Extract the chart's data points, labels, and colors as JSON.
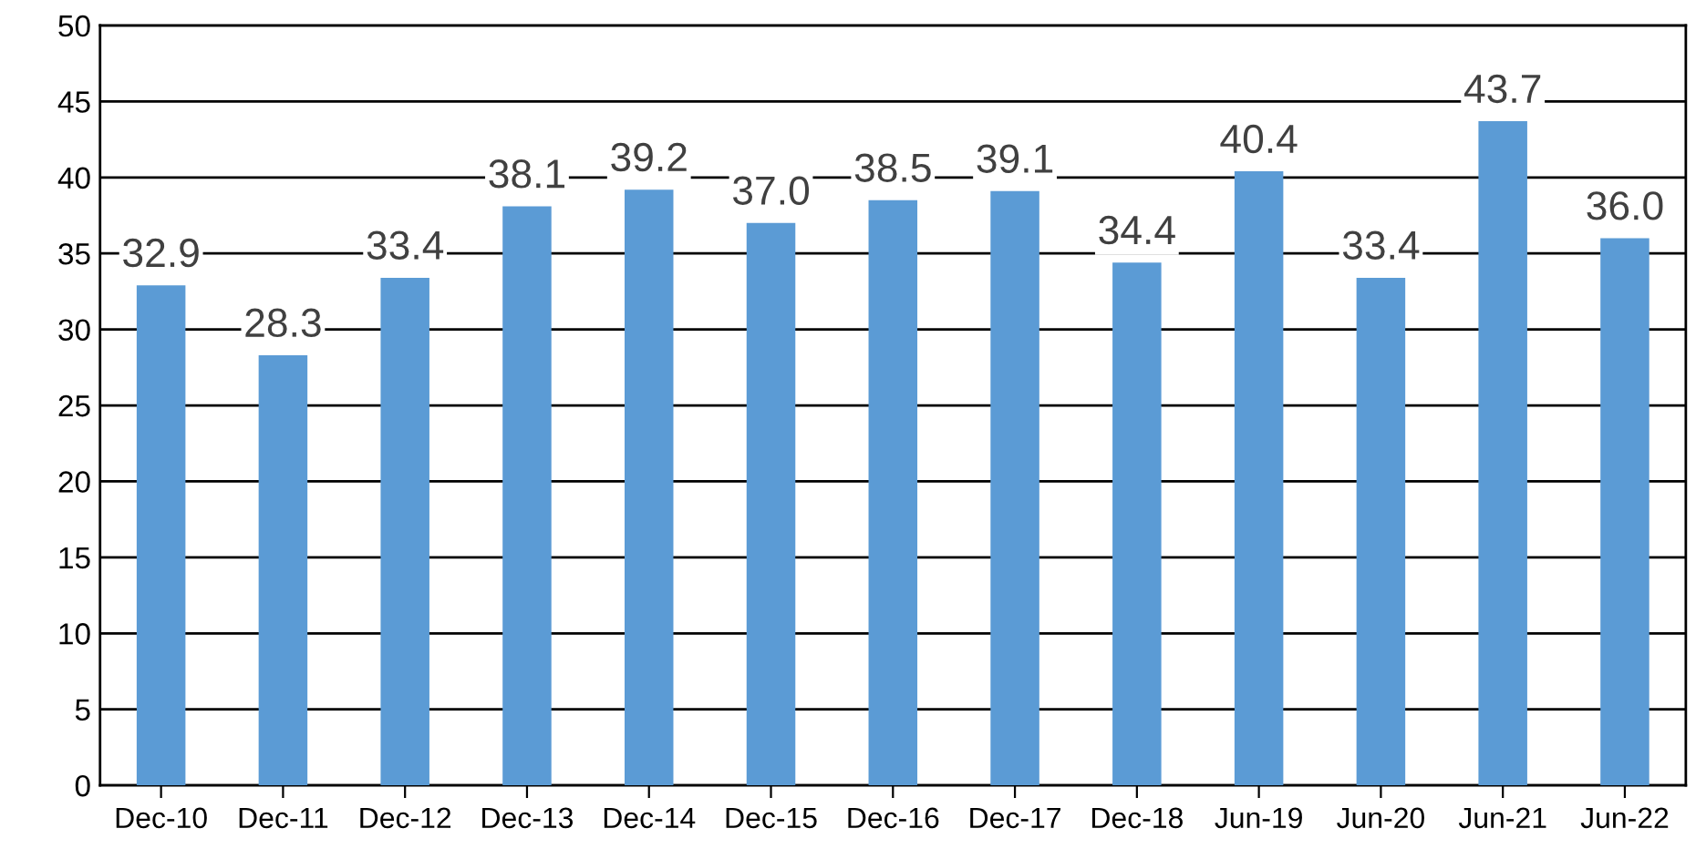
{
  "chart_data": {
    "type": "bar",
    "categories": [
      "Dec-10",
      "Dec-11",
      "Dec-12",
      "Dec-13",
      "Dec-14",
      "Dec-15",
      "Dec-16",
      "Dec-17",
      "Dec-18",
      "Jun-19",
      "Jun-20",
      "Jun-21",
      "Jun-22"
    ],
    "values": [
      32.9,
      28.3,
      33.4,
      38.1,
      39.2,
      37.0,
      38.5,
      39.1,
      34.4,
      40.4,
      33.4,
      43.7,
      36.0
    ],
    "value_labels": [
      "32.9",
      "28.3",
      "33.4",
      "38.1",
      "39.2",
      "37.0",
      "38.5",
      "39.1",
      "34.4",
      "40.4",
      "33.4",
      "43.7",
      "36.0"
    ],
    "color": "#5b9bd5",
    "ylim": [
      0,
      50
    ],
    "yticks": [
      0,
      5,
      10,
      15,
      20,
      25,
      30,
      35,
      40,
      45,
      50
    ],
    "grid": "y",
    "legend": false
  }
}
